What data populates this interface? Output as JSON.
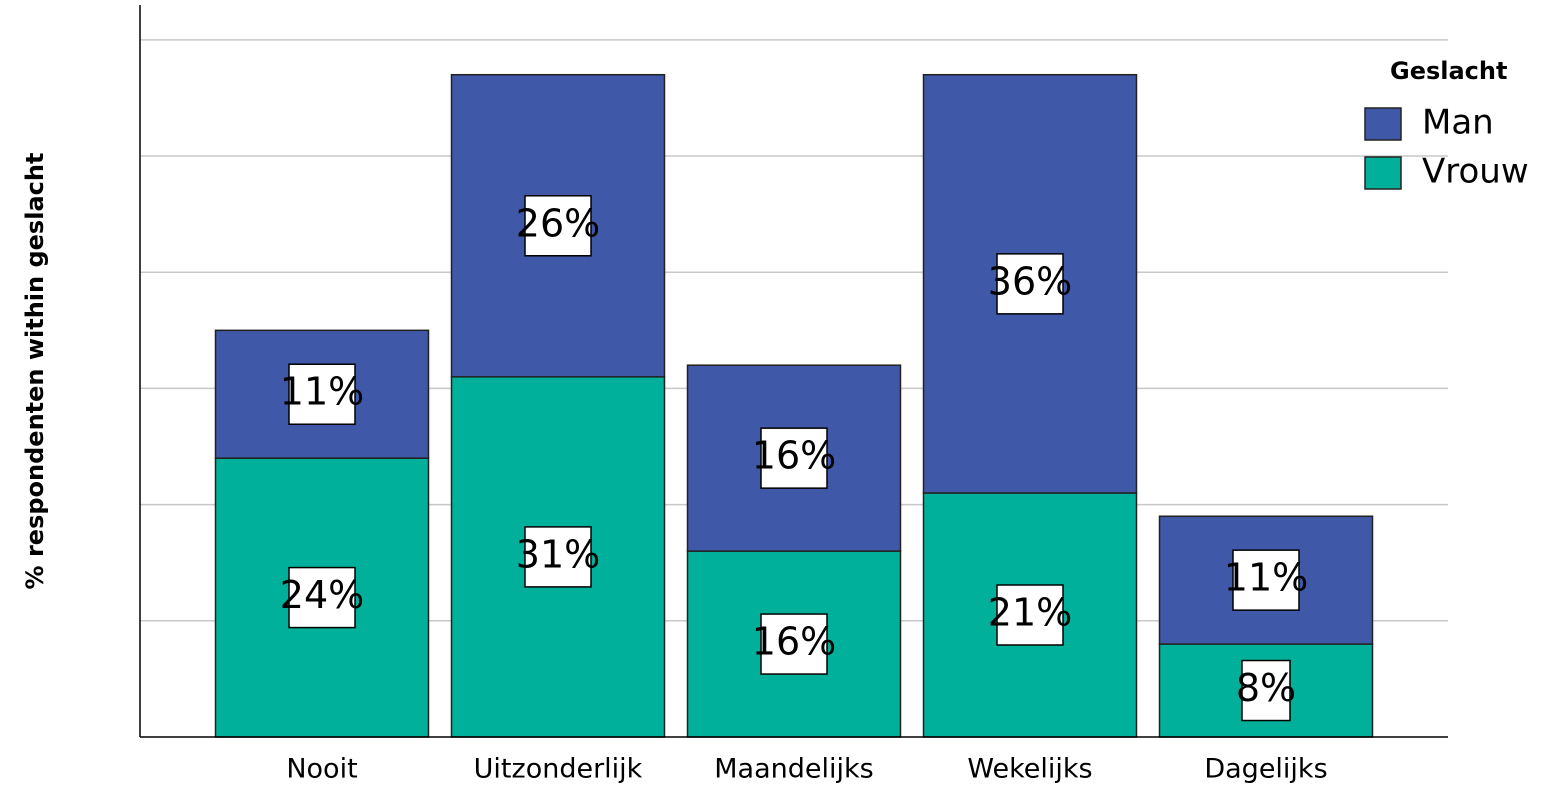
{
  "chart_data": {
    "type": "stacked_bar",
    "y_label": "% respondenten within geslacht",
    "categories": [
      "Nooit",
      "Uitzonderlijk",
      "Maandelijks",
      "Wekelijks",
      "Dagelijks"
    ],
    "series": [
      {
        "name": "Vrouw",
        "color": "#00b09b",
        "values": [
          24,
          31,
          16,
          21,
          8
        ],
        "value_labels": [
          "24%",
          "31%",
          "16%",
          "21%",
          "8%"
        ]
      },
      {
        "name": "Man",
        "color": "#3f58a8",
        "values": [
          11,
          26,
          16,
          36,
          11
        ],
        "value_labels": [
          "11%",
          "26%",
          "16%",
          "36%",
          "11%"
        ]
      }
    ],
    "legend_title": "Geslacht",
    "legend_order": [
      "Man",
      "Vrouw"
    ],
    "ylim": [
      0,
      63
    ],
    "yticks": [
      10,
      20,
      30,
      40,
      50,
      60
    ],
    "grid": true
  }
}
